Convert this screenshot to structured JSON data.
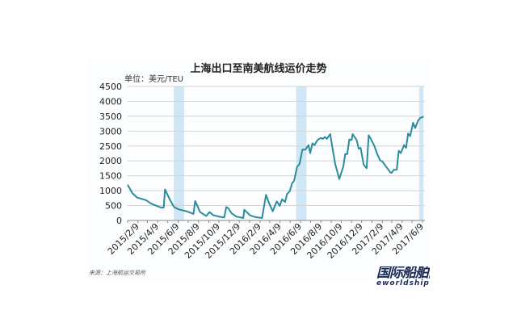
{
  "chart_data": {
    "type": "line",
    "title": "上海出口至南美航线运价走势",
    "ylabel": "单位：美元/TEU",
    "xlabel": "",
    "source": "来源：上海航运交易所",
    "ylim": [
      0,
      4500
    ],
    "yticks": [
      0,
      500,
      1000,
      1500,
      2000,
      2500,
      3000,
      3500,
      4000,
      4500
    ],
    "xlim": [
      "2015-01-09",
      "2017-06-12"
    ],
    "xticks": [
      "2015/2/9",
      "2015/4/9",
      "2015/6/9",
      "2015/8/9",
      "2015/10/9",
      "2015/12/9",
      "2016/2/9",
      "2016/4/9",
      "2016/6/9",
      "2016/8/9",
      "2016/10/9",
      "2016/12/9",
      "2017/2/9",
      "2017/4/9",
      "2017/6/9"
    ],
    "grid": "horizontal",
    "line_color": "#2a8c9c",
    "band_color": "#cfe6f4",
    "shaded_periods": [
      [
        "2015-05-27",
        "2015-06-27"
      ],
      [
        "2016-05-27",
        "2016-06-27"
      ],
      [
        "2017-05-30",
        "2017-06-12"
      ]
    ],
    "series": [
      {
        "points": [
          [
            "2015-01-09",
            1200
          ],
          [
            "2015-01-23",
            920
          ],
          [
            "2015-02-06",
            770
          ],
          [
            "2015-03-05",
            680
          ],
          [
            "2015-03-21",
            560
          ],
          [
            "2015-04-19",
            430
          ],
          [
            "2015-04-27",
            430
          ],
          [
            "2015-05-01",
            1040
          ],
          [
            "2015-05-16",
            680
          ],
          [
            "2015-05-28",
            450
          ],
          [
            "2015-06-10",
            375
          ],
          [
            "2015-07-04",
            310
          ],
          [
            "2015-07-20",
            240
          ],
          [
            "2015-07-25",
            220
          ],
          [
            "2015-07-30",
            650
          ],
          [
            "2015-08-14",
            280
          ],
          [
            "2015-09-01",
            150
          ],
          [
            "2015-09-11",
            280
          ],
          [
            "2015-09-23",
            170
          ],
          [
            "2015-10-17",
            110
          ],
          [
            "2015-10-25",
            100
          ],
          [
            "2015-10-31",
            450
          ],
          [
            "2015-11-07",
            400
          ],
          [
            "2015-11-15",
            250
          ],
          [
            "2015-11-30",
            130
          ],
          [
            "2015-12-21",
            80
          ],
          [
            "2015-12-24",
            360
          ],
          [
            "2016-01-10",
            170
          ],
          [
            "2016-01-27",
            110
          ],
          [
            "2016-02-15",
            80
          ],
          [
            "2016-02-27",
            860
          ],
          [
            "2016-03-07",
            580
          ],
          [
            "2016-03-18",
            310
          ],
          [
            "2016-03-30",
            640
          ],
          [
            "2016-04-08",
            490
          ],
          [
            "2016-04-15",
            710
          ],
          [
            "2016-04-24",
            620
          ],
          [
            "2016-04-30",
            890
          ],
          [
            "2016-05-08",
            980
          ],
          [
            "2016-05-15",
            1250
          ],
          [
            "2016-05-21",
            1330
          ],
          [
            "2016-05-30",
            1800
          ],
          [
            "2016-06-06",
            1890
          ],
          [
            "2016-06-15",
            2380
          ],
          [
            "2016-06-24",
            2380
          ],
          [
            "2016-07-03",
            2530
          ],
          [
            "2016-07-08",
            2260
          ],
          [
            "2016-07-15",
            2590
          ],
          [
            "2016-07-21",
            2530
          ],
          [
            "2016-07-30",
            2700
          ],
          [
            "2016-08-09",
            2770
          ],
          [
            "2016-08-15",
            2740
          ],
          [
            "2016-08-21",
            2800
          ],
          [
            "2016-08-27",
            2740
          ],
          [
            "2016-09-06",
            2900
          ],
          [
            "2016-09-12",
            2470
          ],
          [
            "2016-09-21",
            1890
          ],
          [
            "2016-10-03",
            1390
          ],
          [
            "2016-10-15",
            1800
          ],
          [
            "2016-10-21",
            2230
          ],
          [
            "2016-10-27",
            2230
          ],
          [
            "2016-11-02",
            2720
          ],
          [
            "2016-11-09",
            2700
          ],
          [
            "2016-11-12",
            2900
          ],
          [
            "2016-11-24",
            2700
          ],
          [
            "2016-11-30",
            2410
          ],
          [
            "2016-12-06",
            2440
          ],
          [
            "2016-12-15",
            1870
          ],
          [
            "2016-12-24",
            1750
          ],
          [
            "2016-12-30",
            2860
          ],
          [
            "2017-01-06",
            2720
          ],
          [
            "2017-01-15",
            2530
          ],
          [
            "2017-01-24",
            2250
          ],
          [
            "2017-02-02",
            2020
          ],
          [
            "2017-02-09",
            1980
          ],
          [
            "2017-02-15",
            1890
          ],
          [
            "2017-02-24",
            1750
          ],
          [
            "2017-03-05",
            1610
          ],
          [
            "2017-03-09",
            1600
          ],
          [
            "2017-03-15",
            1700
          ],
          [
            "2017-03-24",
            1700
          ],
          [
            "2017-03-30",
            2340
          ],
          [
            "2017-04-05",
            2260
          ],
          [
            "2017-04-15",
            2530
          ],
          [
            "2017-04-21",
            2440
          ],
          [
            "2017-04-27",
            2920
          ],
          [
            "2017-05-03",
            2830
          ],
          [
            "2017-05-12",
            3280
          ],
          [
            "2017-05-18",
            3100
          ],
          [
            "2017-05-27",
            3350
          ],
          [
            "2017-06-02",
            3440
          ],
          [
            "2017-06-12",
            3480
          ]
        ]
      }
    ]
  },
  "logo": {
    "cn": "国际船舶网",
    "en": "eworldship"
  }
}
